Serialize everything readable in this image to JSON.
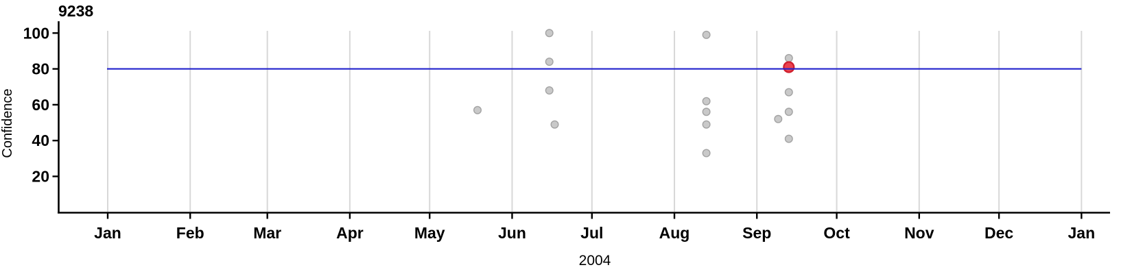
{
  "title": "9238",
  "chart_data": {
    "type": "scatter",
    "title": "9238",
    "xlabel": "2004",
    "ylabel": "Confidence",
    "x_range": [
      "2004-01-01",
      "2005-01-01"
    ],
    "ylim": [
      0,
      102
    ],
    "y_ticks": [
      20,
      40,
      60,
      80,
      100
    ],
    "month_labels": [
      "Jan",
      "Feb",
      "Mar",
      "Apr",
      "May",
      "Jun",
      "Jul",
      "Aug",
      "Sep",
      "Oct",
      "Nov",
      "Dec",
      "Jan"
    ],
    "grid": "vertical-month-gridlines",
    "legend": "none",
    "reference_line": {
      "value": 80
    },
    "points": [
      {
        "date": "2004-05-19",
        "confidence": 57
      },
      {
        "date": "2004-06-15",
        "confidence": 100
      },
      {
        "date": "2004-06-15",
        "confidence": 84
      },
      {
        "date": "2004-06-15",
        "confidence": 68
      },
      {
        "date": "2004-06-17",
        "confidence": 49
      },
      {
        "date": "2004-08-13",
        "confidence": 99
      },
      {
        "date": "2004-08-13",
        "confidence": 62
      },
      {
        "date": "2004-08-13",
        "confidence": 56
      },
      {
        "date": "2004-08-13",
        "confidence": 49
      },
      {
        "date": "2004-08-13",
        "confidence": 33
      },
      {
        "date": "2004-09-09",
        "confidence": 52
      },
      {
        "date": "2004-09-13",
        "confidence": 86
      },
      {
        "date": "2004-09-13",
        "confidence": 81,
        "highlighted": true
      },
      {
        "date": "2004-09-13",
        "confidence": 67
      },
      {
        "date": "2004-09-13",
        "confidence": 56
      },
      {
        "date": "2004-09-13",
        "confidence": 41
      }
    ],
    "colors": {
      "point_fill": "#c9c9c9",
      "point_stroke": "#a3a3a3",
      "highlight_fill": "#ea424f",
      "highlight_stroke": "#cf1f2e",
      "reference_line": "#2222cc",
      "gridline": "#d8d8d8",
      "axis": "#000000"
    }
  }
}
